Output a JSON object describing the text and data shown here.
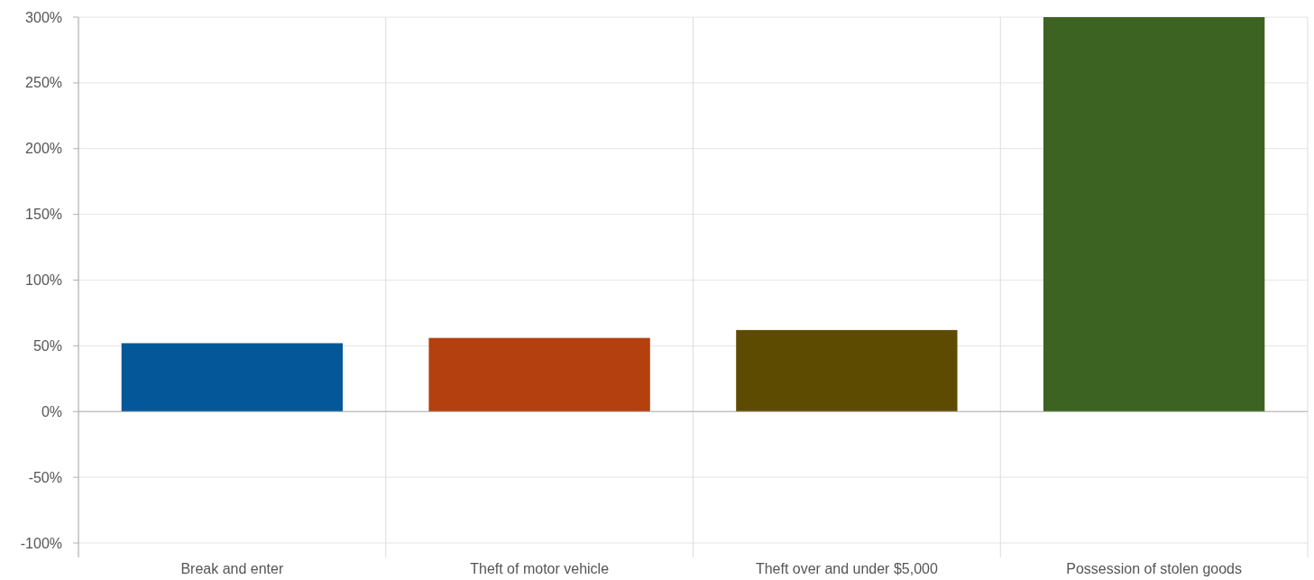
{
  "chart_data": {
    "type": "bar",
    "categories": [
      "Break and enter",
      "Theft of motor vehicle",
      "Theft over and under $5,000",
      "Possession of stolen goods"
    ],
    "values": [
      52,
      56,
      62,
      300
    ],
    "colors": [
      "#04589a",
      "#b3400e",
      "#5e4b02",
      "#3c6322"
    ],
    "ylim": [
      -100,
      300
    ],
    "yticks": [
      {
        "value": -100,
        "label": "-100%"
      },
      {
        "value": -50,
        "label": "-50%"
      },
      {
        "value": 0,
        "label": "0%"
      },
      {
        "value": 50,
        "label": "50%"
      },
      {
        "value": 100,
        "label": "100%"
      },
      {
        "value": 150,
        "label": "150%"
      },
      {
        "value": 200,
        "label": "200%"
      },
      {
        "value": 250,
        "label": "250%"
      },
      {
        "value": 300,
        "label": "300%"
      }
    ],
    "grid": true
  }
}
